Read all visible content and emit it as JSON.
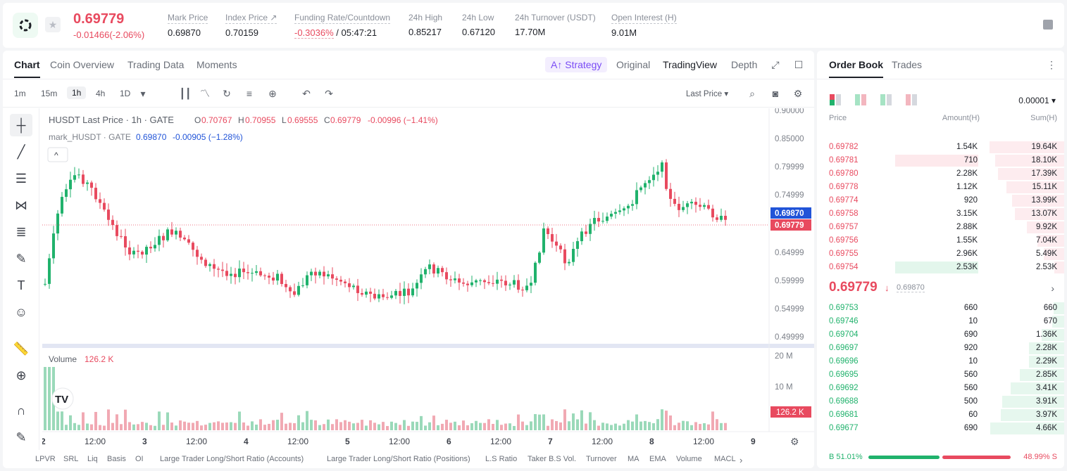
{
  "ticker": {
    "last_price": "0.69779",
    "change": "-0.01466(-2.06%)",
    "stats": [
      {
        "label": "Mark Price",
        "value": "0.69870"
      },
      {
        "label": "Index Price ↗",
        "value": "0.70159"
      },
      {
        "label": "Funding Rate/Countdown",
        "value_neg": "-0.3036%",
        "value": " / 05:47:21"
      },
      {
        "label": "24h High",
        "value": "0.85217"
      },
      {
        "label": "24h Low",
        "value": "0.67120"
      },
      {
        "label": "24h Turnover (USDT)",
        "value": "17.70M"
      },
      {
        "label": "Open Interest (H)",
        "value": "9.01M"
      }
    ]
  },
  "chart_tabs": [
    "Chart",
    "Coin Overview",
    "Trading Data",
    "Moments"
  ],
  "strategy_label": "A↑ Strategy",
  "view_modes": [
    "Original",
    "TradingView",
    "Depth"
  ],
  "timeframes": [
    "1m",
    "15m",
    "1h",
    "4h",
    "1D"
  ],
  "price_type": "Last Price ▾",
  "legend": {
    "main": "HUSDT Last Price · 1h · GATE",
    "o_label": "O",
    "o": "0.70767",
    "h_label": "H",
    "h": "0.70955",
    "l_label": "L",
    "l": "0.69555",
    "c_label": "C",
    "c": "0.69779",
    "chg": "-0.00996 (−1.41%)",
    "mark_label": "mark_HUSDT · GATE",
    "mark_val": "0.69870",
    "mark_chg": "-0.00905 (−1.28%)",
    "volume_label": "Volume",
    "volume_val": "126.2 K"
  },
  "price_axis": [
    "0.90000",
    "0.85000",
    "0.79999",
    "0.74999",
    "0.64999",
    "0.59999",
    "0.54999",
    "0.49999"
  ],
  "volume_axis": [
    "20 M",
    "10 M"
  ],
  "tags": {
    "mark": "0.69870",
    "last": "0.69779",
    "volume": "126.2 K"
  },
  "time_axis": [
    "2",
    "12:00",
    "3",
    "12:00",
    "4",
    "12:00",
    "5",
    "12:00",
    "6",
    "12:00",
    "7",
    "12:00",
    "8",
    "12:00",
    "9"
  ],
  "indicators": [
    "LPVR",
    "SRL",
    "Liq",
    "Basis",
    "OI",
    "Large Trader Long/Short Ratio (Accounts)",
    "Large Trader Long/Short Ratio (Positions)",
    "L.S Ratio",
    "Taker B.S Vol.",
    "Turnover",
    "MA",
    "EMA",
    "Volume",
    "MACL"
  ],
  "orderbook": {
    "tabs": [
      "Order Book",
      "Trades"
    ],
    "precision": "0.00001 ▾",
    "headers": {
      "price": "Price",
      "amount": "Amount(H)",
      "sum": "Sum(H)"
    },
    "asks": [
      {
        "price": "0.69782",
        "amount": "1.54K",
        "sum": "19.64K",
        "amt_frac": 0.0,
        "sum_frac": 0.44
      },
      {
        "price": "0.69781",
        "amount": "710",
        "sum": "18.10K",
        "amt_frac": 0.98,
        "sum_frac": 0.41
      },
      {
        "price": "0.69780",
        "amount": "2.28K",
        "sum": "17.39K",
        "amt_frac": 0.0,
        "sum_frac": 0.39
      },
      {
        "price": "0.69778",
        "amount": "1.12K",
        "sum": "15.11K",
        "amt_frac": 0.0,
        "sum_frac": 0.34
      },
      {
        "price": "0.69774",
        "amount": "920",
        "sum": "13.99K",
        "amt_frac": 0.0,
        "sum_frac": 0.31
      },
      {
        "price": "0.69758",
        "amount": "3.15K",
        "sum": "13.07K",
        "amt_frac": 0.0,
        "sum_frac": 0.29
      },
      {
        "price": "0.69757",
        "amount": "2.88K",
        "sum": "9.92K",
        "amt_frac": 0.0,
        "sum_frac": 0.22
      },
      {
        "price": "0.69756",
        "amount": "1.55K",
        "sum": "7.04K",
        "amt_frac": 0.0,
        "sum_frac": 0.16
      },
      {
        "price": "0.69755",
        "amount": "2.96K",
        "sum": "5.49K",
        "amt_frac": 0.0,
        "sum_frac": 0.12
      },
      {
        "price": "0.69754",
        "amount": "2.53K",
        "sum": "2.53K",
        "amt_frac": 0.98,
        "sum_frac": 0.06
      }
    ],
    "mid": {
      "price": "0.69779",
      "arrow": "↓",
      "mark": "0.69870"
    },
    "bids": [
      {
        "price": "0.69753",
        "amount": "660",
        "sum": "660",
        "sum_frac": 0.07
      },
      {
        "price": "0.69746",
        "amount": "10",
        "sum": "670",
        "sum_frac": 0.08
      },
      {
        "price": "0.69704",
        "amount": "690",
        "sum": "1.36K",
        "sum_frac": 0.15
      },
      {
        "price": "0.69697",
        "amount": "920",
        "sum": "2.28K",
        "sum_frac": 0.24
      },
      {
        "price": "0.69696",
        "amount": "10",
        "sum": "2.29K",
        "sum_frac": 0.24
      },
      {
        "price": "0.69695",
        "amount": "560",
        "sum": "2.85K",
        "sum_frac": 0.3
      },
      {
        "price": "0.69692",
        "amount": "560",
        "sum": "3.41K",
        "sum_frac": 0.36
      },
      {
        "price": "0.69688",
        "amount": "500",
        "sum": "3.91K",
        "sum_frac": 0.42
      },
      {
        "price": "0.69681",
        "amount": "60",
        "sum": "3.97K",
        "sum_frac": 0.43
      },
      {
        "price": "0.69677",
        "amount": "690",
        "sum": "4.66K",
        "sum_frac": 0.5
      }
    ],
    "buy_ratio": "B 51.01%",
    "sell_ratio": "48.99% S",
    "buy_frac": 0.5101
  },
  "colors": {
    "up": "#20b26c",
    "down": "#e84a5f",
    "accent": "#7a4cf5",
    "mark_tag": "#2154d8"
  }
}
